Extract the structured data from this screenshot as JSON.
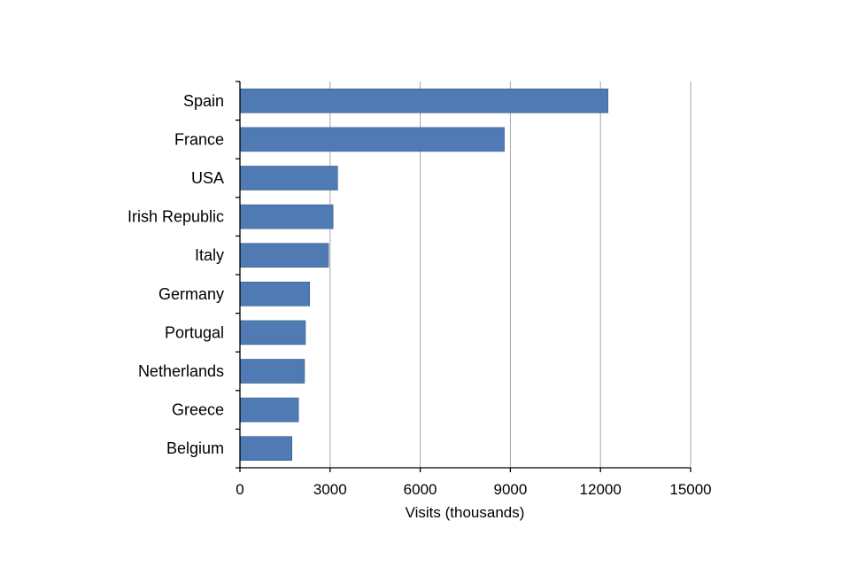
{
  "chart_data": {
    "type": "bar",
    "orientation": "horizontal",
    "categories": [
      "Spain",
      "France",
      "USA",
      "Irish Republic",
      "Italy",
      "Germany",
      "Portugal",
      "Netherlands",
      "Greece",
      "Belgium"
    ],
    "values": [
      12250,
      8800,
      3250,
      3100,
      2950,
      2320,
      2180,
      2150,
      1950,
      1730
    ],
    "xlabel": "Visits (thousands)",
    "ylabel": "",
    "xlim": [
      0,
      15000
    ],
    "xticks": [
      "0",
      "3000",
      "6000",
      "9000",
      "12000",
      "15000"
    ],
    "grid": "vertical",
    "legend": "none",
    "bar_color": "#4f7ab3"
  }
}
